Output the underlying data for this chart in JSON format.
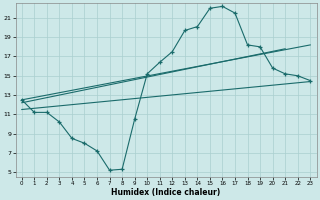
{
  "xlabel": "Humidex (Indice chaleur)",
  "background_color": "#cde8e8",
  "grid_color": "#aacfcf",
  "line_color": "#1a6b6b",
  "xlim": [
    -0.5,
    23.5
  ],
  "ylim": [
    4.5,
    22.5
  ],
  "yticks": [
    5,
    7,
    9,
    11,
    13,
    15,
    17,
    19,
    21
  ],
  "xticks": [
    0,
    1,
    2,
    3,
    4,
    5,
    6,
    7,
    8,
    9,
    10,
    11,
    12,
    13,
    14,
    15,
    16,
    17,
    18,
    19,
    20,
    21,
    22,
    23
  ],
  "main_x": [
    0,
    1,
    2,
    3,
    4,
    5,
    6,
    7,
    8,
    9,
    10,
    11,
    12,
    13,
    14,
    15,
    16,
    17,
    18,
    19,
    20,
    21,
    22,
    23
  ],
  "main_y": [
    12.5,
    11.2,
    11.2,
    10.2,
    8.5,
    8.0,
    7.2,
    5.2,
    5.3,
    10.5,
    15.2,
    16.4,
    17.5,
    19.7,
    20.1,
    22.0,
    22.2,
    21.5,
    18.2,
    18.0,
    15.8,
    15.2,
    15.0,
    14.5
  ],
  "trend1_x": [
    0,
    23
  ],
  "trend1_y": [
    12.5,
    18.2
  ],
  "trend2_x": [
    0,
    21
  ],
  "trend2_y": [
    12.2,
    17.8
  ],
  "trend3_x": [
    0,
    23
  ],
  "trend3_y": [
    11.5,
    14.4
  ]
}
